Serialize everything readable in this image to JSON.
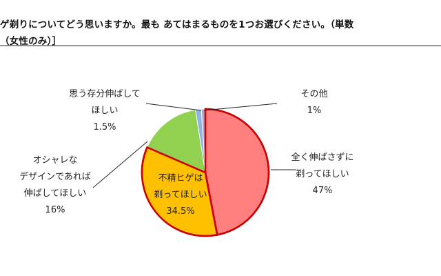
{
  "question": {
    "line1": "ゲ剃りについてどう思いますか。最も あてはまるものを1つお選びください。（単数",
    "line2": "（女性のみ）］"
  },
  "chart_data": {
    "type": "pie",
    "title": "",
    "slices": [
      {
        "label_lines": [
          "全く伸ばさずに",
          "剃ってほしい"
        ],
        "value_text": "47%",
        "value": 47,
        "color": "#ff7f7f",
        "stroke": "#cc0000"
      },
      {
        "label_lines": [
          "不精ヒゲは",
          "剃ってほしい"
        ],
        "value_text": "34.5%",
        "value": 34.5,
        "color": "#ffc000",
        "stroke": "#cc0000"
      },
      {
        "label_lines": [
          "オシャレな",
          "デザインであれば",
          "伸ばしてほしい"
        ],
        "value_text": "16%",
        "value": 16,
        "color": "#92d050",
        "stroke": "#ffffff"
      },
      {
        "label_lines": [
          "思う存分伸ばして",
          "ほしい"
        ],
        "value_text": "1.5%",
        "value": 1.5,
        "color": "#8eb4e3",
        "stroke": "#ffffff"
      },
      {
        "label_lines": [
          "その他"
        ],
        "value_text": "1%",
        "value": 1,
        "color": "#b3a2c7",
        "stroke": "#ffffff"
      }
    ],
    "start_angle_deg": 0,
    "direction": "clockwise",
    "legend": "none"
  }
}
